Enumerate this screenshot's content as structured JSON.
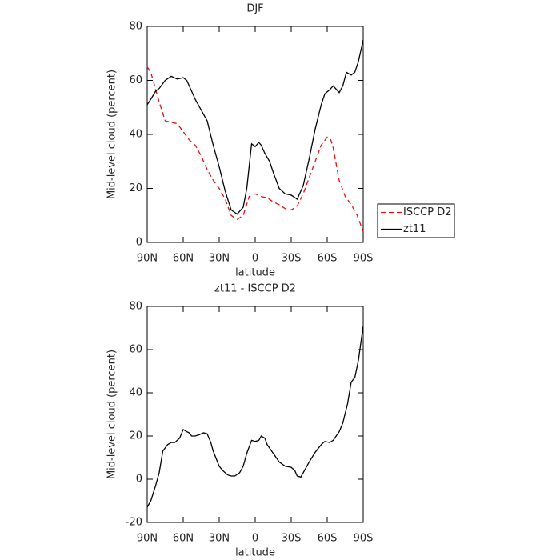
{
  "chart_data": [
    {
      "type": "line",
      "title": "DJF",
      "xlabel": "latitude",
      "ylabel": "Mid-level cloud (percent)",
      "xlim": [
        90,
        -90
      ],
      "ylim": [
        0,
        80
      ],
      "xticks": [
        {
          "value": 90,
          "label": "90N"
        },
        {
          "value": 60,
          "label": "60N"
        },
        {
          "value": 30,
          "label": "30N"
        },
        0,
        {
          "value": -30,
          "label": "30S"
        },
        {
          "value": -60,
          "label": "60S"
        },
        {
          "value": -90,
          "label": "90S"
        }
      ],
      "yticks": [
        0,
        20,
        40,
        60,
        80
      ],
      "legend": "right",
      "series": [
        {
          "name": "ISCCP D2",
          "color": "#e01010",
          "linestyle": "dashed",
          "x": [
            90,
            87,
            80,
            75,
            70,
            65,
            60,
            55,
            50,
            45,
            40,
            35,
            30,
            25,
            20,
            15,
            10,
            5,
            0,
            -5,
            -10,
            -15,
            -20,
            -25,
            -30,
            -35,
            -40,
            -45,
            -50,
            -55,
            -60,
            -63,
            -65,
            -70,
            -75,
            -80,
            -85,
            -90
          ],
          "values": [
            65,
            63,
            52,
            45,
            44.5,
            44,
            41,
            38,
            36,
            32,
            27,
            23,
            20,
            16,
            10,
            8.5,
            10,
            17,
            18,
            17,
            16.5,
            15,
            14,
            12.5,
            12,
            13.5,
            18,
            24,
            30,
            36,
            39,
            38,
            35,
            23,
            17,
            14,
            10,
            4
          ]
        },
        {
          "name": "zt11",
          "color": "#000000",
          "linestyle": "solid",
          "x": [
            90,
            87,
            83,
            80,
            75,
            70,
            65,
            60,
            57,
            55,
            50,
            45,
            40,
            35,
            30,
            25,
            20,
            15,
            10,
            7,
            3,
            0,
            -3,
            -5,
            -8,
            -12,
            -15,
            -20,
            -25,
            -30,
            -35,
            -40,
            -45,
            -50,
            -55,
            -58,
            -62,
            -65,
            -70,
            -73,
            -76,
            -80,
            -83,
            -86,
            -90
          ],
          "values": [
            51,
            53,
            56,
            57,
            60,
            61.5,
            60.5,
            61,
            60,
            58,
            53,
            49,
            45,
            36,
            28,
            19,
            12,
            10.5,
            13,
            20,
            36.5,
            35.5,
            37,
            36,
            33,
            30,
            26,
            20,
            18,
            17.5,
            16,
            21,
            31,
            42,
            51,
            55,
            56.5,
            58,
            55.5,
            58,
            63,
            62,
            63,
            67,
            75
          ]
        }
      ]
    },
    {
      "type": "line",
      "title": "zt11 - ISCCP D2",
      "xlabel": "latitude",
      "ylabel": "Mid-level cloud (percent)",
      "xlim": [
        90,
        -90
      ],
      "ylim": [
        -20,
        80
      ],
      "xticks": [
        {
          "value": 90,
          "label": "90N"
        },
        {
          "value": 60,
          "label": "60N"
        },
        {
          "value": 30,
          "label": "30N"
        },
        0,
        {
          "value": -30,
          "label": "30S"
        },
        {
          "value": -60,
          "label": "60S"
        },
        {
          "value": -90,
          "label": "90S"
        }
      ],
      "yticks": [
        -20,
        0,
        20,
        40,
        60,
        80
      ],
      "series": [
        {
          "color": "#000000",
          "linestyle": "solid",
          "x": [
            90,
            87,
            83,
            80,
            77,
            73,
            70,
            67,
            63,
            60,
            57,
            55,
            53,
            50,
            47,
            43,
            40,
            37,
            35,
            30,
            27,
            23,
            20,
            17,
            13,
            10,
            7,
            3,
            0,
            -3,
            -5,
            -8,
            -10,
            -15,
            -20,
            -25,
            -30,
            -33,
            -35,
            -38,
            -40,
            -45,
            -50,
            -55,
            -58,
            -62,
            -65,
            -70,
            -73,
            -77,
            -80,
            -83,
            -86,
            -90
          ],
          "values": [
            -13,
            -10,
            -3,
            3,
            13,
            16,
            17,
            17,
            19,
            23,
            22,
            21.5,
            20,
            20,
            20.5,
            21.5,
            21,
            17,
            13,
            6,
            4,
            2,
            1.5,
            1.5,
            3,
            6,
            12,
            18,
            17.5,
            18,
            20,
            19,
            16,
            12,
            8,
            6,
            5.5,
            4,
            1.5,
            1,
            3,
            8,
            12.5,
            16,
            17.5,
            17,
            18,
            22,
            26,
            35,
            45,
            47,
            55,
            71
          ]
        }
      ]
    }
  ]
}
